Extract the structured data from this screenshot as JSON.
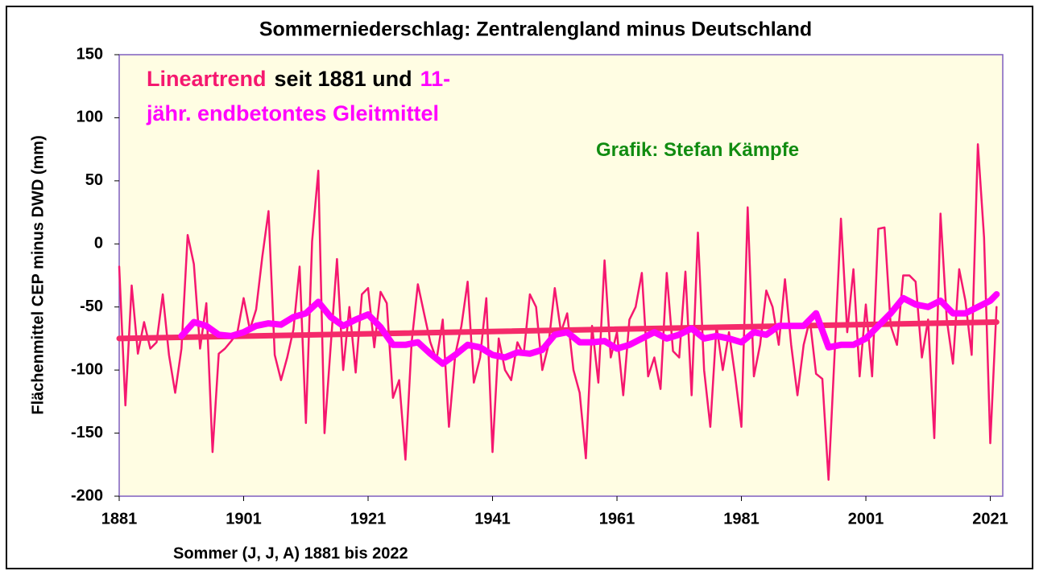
{
  "chart_data": {
    "type": "line",
    "title": "Sommerniederschlag: Zentralengland minus Deutschland",
    "xlabel": "Sommer (J, J, A) 1881 bis 2022",
    "ylabel": "Flächenmittel CEP minus DWD (mm)",
    "annotations": [
      {
        "text": "Lineartrend",
        "color": "#f5176f"
      },
      {
        "text": "seit 1881 und",
        "color": "#000000"
      },
      {
        "text": "11-",
        "color": "#ff00ff"
      },
      {
        "text": "jähr. endbetontes Gleitmittel",
        "color": "#ff00ff"
      },
      {
        "text": "Grafik: Stefan Kämpfe",
        "color": "#118c11"
      }
    ],
    "xlim": [
      1881,
      2023
    ],
    "xticks": [
      1881,
      1901,
      1921,
      1941,
      1961,
      1981,
      2001,
      2021
    ],
    "ylim": [
      -200,
      150
    ],
    "yticks": [
      150,
      100,
      50,
      0,
      -50,
      -100,
      -150,
      -200
    ],
    "x": [
      1881,
      1882,
      1883,
      1884,
      1885,
      1886,
      1887,
      1888,
      1889,
      1890,
      1891,
      1892,
      1893,
      1894,
      1895,
      1896,
      1897,
      1898,
      1899,
      1900,
      1901,
      1902,
      1903,
      1904,
      1905,
      1906,
      1907,
      1908,
      1909,
      1910,
      1911,
      1912,
      1913,
      1914,
      1915,
      1916,
      1917,
      1918,
      1919,
      1920,
      1921,
      1922,
      1923,
      1924,
      1925,
      1926,
      1927,
      1928,
      1929,
      1930,
      1931,
      1932,
      1933,
      1934,
      1935,
      1936,
      1937,
      1938,
      1939,
      1940,
      1941,
      1942,
      1943,
      1944,
      1945,
      1946,
      1947,
      1948,
      1949,
      1950,
      1951,
      1952,
      1953,
      1954,
      1955,
      1956,
      1957,
      1958,
      1959,
      1960,
      1961,
      1962,
      1963,
      1964,
      1965,
      1966,
      1967,
      1968,
      1969,
      1970,
      1971,
      1972,
      1973,
      1974,
      1975,
      1976,
      1977,
      1978,
      1979,
      1980,
      1981,
      1982,
      1983,
      1984,
      1985,
      1986,
      1987,
      1988,
      1989,
      1990,
      1991,
      1992,
      1993,
      1994,
      1995,
      1996,
      1997,
      1998,
      1999,
      2000,
      2001,
      2002,
      2003,
      2004,
      2005,
      2006,
      2007,
      2008,
      2009,
      2010,
      2011,
      2012,
      2013,
      2014,
      2015,
      2016,
      2017,
      2018,
      2019,
      2020,
      2021,
      2022
    ],
    "series": [
      {
        "color": "#f5176f",
        "values": [
          -18,
          -128,
          -33,
          -87,
          -62,
          -83,
          -78,
          -40,
          -88,
          -118,
          -83,
          7,
          -16,
          -83,
          -47,
          -165,
          -87,
          -83,
          -77,
          -70,
          -43,
          -68,
          -52,
          -10,
          26,
          -88,
          -108,
          -90,
          -68,
          -18,
          -142,
          2,
          58,
          -150,
          -80,
          -12,
          -100,
          -50,
          -102,
          -40,
          -35,
          -82,
          -38,
          -47,
          -122,
          -108,
          -171,
          -78,
          -32,
          -55,
          -78,
          -92,
          -60,
          -145,
          -88,
          -65,
          -30,
          -110,
          -90,
          -43,
          -165,
          -75,
          -100,
          -108,
          -78,
          -88,
          -40,
          -50,
          -100,
          -80,
          -35,
          -70,
          -55,
          -100,
          -118,
          -170,
          -65,
          -110,
          -13,
          -90,
          -70,
          -120,
          -60,
          -50,
          -23,
          -105,
          -90,
          -115,
          -23,
          -85,
          -90,
          -22,
          -120,
          9,
          -100,
          -145,
          -65,
          -100,
          -70,
          -105,
          -145,
          29,
          -105,
          -80,
          -37,
          -50,
          -80,
          -28,
          -80,
          -120,
          -80,
          -60,
          -103,
          -107,
          -187,
          -85,
          20,
          -70,
          -20,
          -105,
          -48,
          -105,
          12,
          13,
          -65,
          -80,
          -25,
          -25,
          -30,
          -90,
          -60,
          -154,
          24,
          -60,
          -95,
          -20,
          -45,
          -88,
          79,
          5,
          -158,
          -50
        ]
      },
      {
        "color": "#f52a6a",
        "x": [
          1881,
          2022
        ],
        "values": [
          -75,
          -62
        ]
      },
      {
        "color": "#ff00ff",
        "x": [
          1891,
          1893,
          1895,
          1897,
          1899,
          1901,
          1903,
          1905,
          1907,
          1909,
          1911,
          1913,
          1915,
          1917,
          1919,
          1921,
          1923,
          1925,
          1927,
          1929,
          1931,
          1933,
          1935,
          1937,
          1939,
          1941,
          1943,
          1945,
          1947,
          1949,
          1951,
          1953,
          1955,
          1957,
          1959,
          1961,
          1963,
          1965,
          1967,
          1969,
          1971,
          1973,
          1975,
          1977,
          1979,
          1981,
          1983,
          1985,
          1987,
          1989,
          1991,
          1993,
          1995,
          1997,
          1999,
          2001,
          2003,
          2005,
          2007,
          2009,
          2011,
          2013,
          2015,
          2017,
          2019,
          2021,
          2022
        ],
        "values": [
          -73,
          -62,
          -65,
          -72,
          -73,
          -70,
          -65,
          -63,
          -64,
          -58,
          -55,
          -46,
          -58,
          -65,
          -60,
          -56,
          -66,
          -80,
          -80,
          -78,
          -87,
          -95,
          -88,
          -80,
          -82,
          -88,
          -90,
          -86,
          -87,
          -84,
          -72,
          -70,
          -78,
          -78,
          -77,
          -83,
          -80,
          -75,
          -70,
          -75,
          -72,
          -67,
          -75,
          -73,
          -75,
          -78,
          -70,
          -72,
          -65,
          -65,
          -65,
          -55,
          -82,
          -80,
          -80,
          -75,
          -65,
          -55,
          -43,
          -48,
          -50,
          -45,
          -55,
          -55,
          -50,
          -45,
          -40
        ]
      }
    ]
  }
}
